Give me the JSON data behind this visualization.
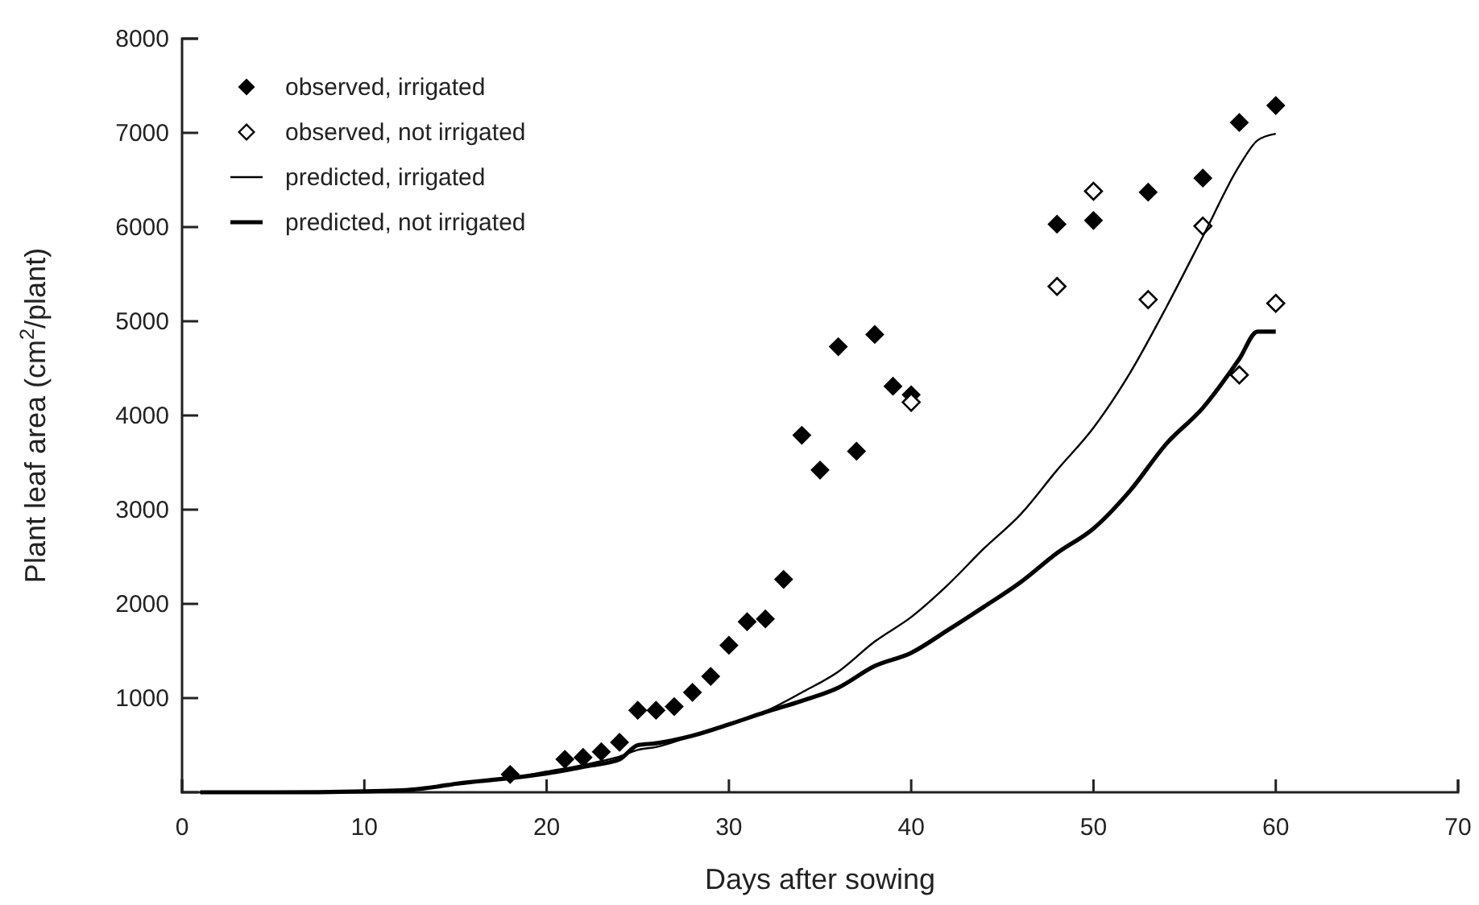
{
  "chart_data": {
    "type": "line",
    "xlabel": "Days after sowing",
    "ylabel": "Plant leaf area (cm$^{2}$/plant)",
    "xlim": [
      0,
      70
    ],
    "xticks": [
      0,
      10,
      20,
      30,
      40,
      50,
      60,
      70
    ],
    "ylim": [
      0,
      8000
    ],
    "yticks": [
      1000,
      2000,
      3000,
      4000,
      5000,
      6000,
      7000,
      8000
    ],
    "grid": false,
    "legend": "top left",
    "series": [
      {
        "name": "observed, irrigated",
        "type": "scatter",
        "marker": "diamond",
        "color": "#000000",
        "x": [
          18,
          21,
          22,
          23,
          24,
          25,
          26,
          27,
          28,
          29,
          30,
          31,
          32,
          33,
          34,
          35,
          36,
          37,
          38,
          39,
          40,
          48,
          50,
          53,
          56,
          58,
          60
        ],
        "values": [
          190,
          350,
          370,
          430,
          530,
          870,
          870,
          910,
          1060,
          1230,
          1560,
          1810,
          1840,
          2260,
          3790,
          3420,
          4730,
          3620,
          4860,
          4310,
          4220,
          6030,
          6070,
          6370,
          6520,
          7110,
          7290
        ]
      },
      {
        "name": "observed, not irrigated",
        "type": "scatter",
        "marker": "diamond",
        "color": "#ffffff",
        "x": [
          40,
          48,
          50,
          53,
          56,
          58,
          60
        ],
        "values": [
          4140,
          5370,
          6380,
          5230,
          6010,
          4430,
          5190
        ]
      },
      {
        "name": "predicted, irrigated",
        "marker": "none",
        "line_style": "solid",
        "color": "#000000",
        "x": [
          1,
          5,
          10,
          12,
          14,
          15,
          18,
          20,
          22,
          24,
          25,
          26,
          28,
          30,
          32,
          34,
          36,
          38,
          40,
          42,
          44,
          46,
          48,
          50,
          52,
          54,
          56,
          58,
          59,
          60
        ],
        "values": [
          0,
          0,
          10,
          20,
          60,
          90,
          150,
          220,
          290,
          380,
          450,
          480,
          600,
          730,
          860,
          1060,
          1280,
          1600,
          1860,
          2200,
          2590,
          2950,
          3420,
          3870,
          4450,
          5150,
          5900,
          6650,
          6920,
          6990
        ]
      },
      {
        "name": "predicted, not irrigated",
        "marker": "none",
        "line_style": "solid",
        "color": "#000000",
        "x": [
          1,
          5,
          10,
          12,
          14,
          15,
          18,
          20,
          22,
          24,
          25,
          26,
          28,
          30,
          32,
          34,
          36,
          38,
          40,
          42,
          44,
          46,
          48,
          50,
          52,
          54,
          56,
          58,
          59,
          60
        ],
        "values": [
          0,
          0,
          10,
          20,
          60,
          90,
          150,
          200,
          270,
          350,
          500,
          520,
          600,
          720,
          850,
          970,
          1110,
          1340,
          1480,
          1720,
          1970,
          2230,
          2540,
          2800,
          3200,
          3700,
          4080,
          4600,
          4890,
          4890
        ]
      }
    ]
  }
}
